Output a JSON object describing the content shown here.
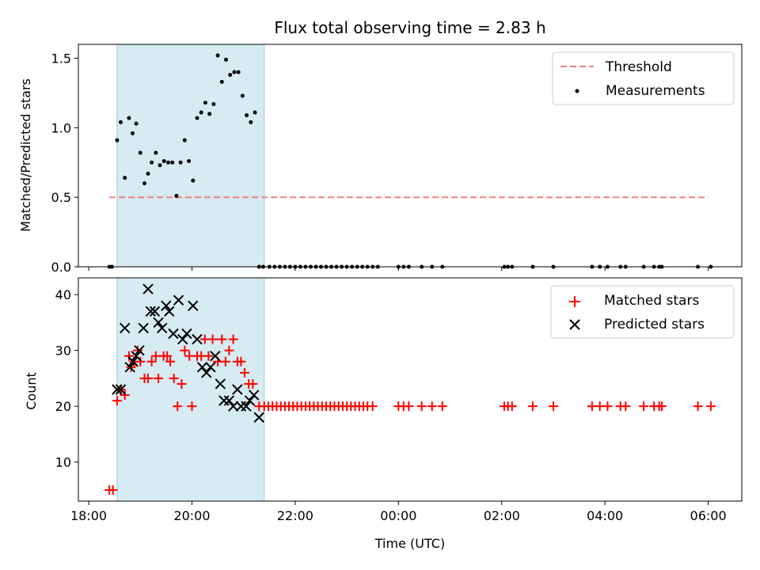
{
  "chart_data": [
    {
      "type": "scatter",
      "title": "Flux total observing time = 2.83 h",
      "ylabel": "Matched/Predicted stars",
      "xlabel": "",
      "x_unit": "hours since 18:00 UTC",
      "xlim": [
        -0.2,
        12.65
      ],
      "ylim": [
        0,
        1.6
      ],
      "yticks": [
        0.0,
        0.5,
        1.0,
        1.5
      ],
      "ytick_labels": [
        "0.0",
        "0.5",
        "1.0",
        "1.5"
      ],
      "xticks": [
        0,
        2,
        4,
        6,
        8,
        10,
        12
      ],
      "grid": false,
      "legend_position": "top-right",
      "shaded_x": [
        0.55,
        3.4
      ],
      "threshold": {
        "name": "Threshold",
        "y": 0.5,
        "x": [
          0.4,
          12
        ]
      },
      "series": [
        {
          "name": "Measurements",
          "x": [
            0.4,
            0.45,
            0.55,
            0.62,
            0.7,
            0.78,
            0.85,
            0.92,
            1.0,
            1.08,
            1.15,
            1.22,
            1.3,
            1.38,
            1.46,
            1.54,
            1.62,
            1.7,
            1.78,
            1.86,
            1.94,
            2.02,
            2.1,
            2.18,
            2.26,
            2.34,
            2.42,
            2.5,
            2.58,
            2.66,
            2.74,
            2.82,
            2.9,
            2.98,
            3.06,
            3.14,
            3.22,
            3.3,
            3.38,
            3.5,
            3.6,
            3.7,
            3.8,
            3.9,
            4.0,
            4.1,
            4.2,
            4.3,
            4.4,
            4.5,
            4.6,
            4.7,
            4.8,
            4.9,
            5.0,
            5.1,
            5.2,
            5.3,
            5.4,
            5.5,
            5.6,
            6.0,
            6.1,
            6.2,
            6.45,
            6.65,
            6.85,
            8.05,
            8.12,
            8.2,
            8.6,
            9.0,
            9.75,
            9.9,
            10.05,
            10.3,
            10.4,
            10.75,
            10.95,
            11.05,
            11.1,
            11.8,
            12.05
          ],
          "y": [
            0,
            0,
            0.91,
            1.04,
            0.64,
            1.07,
            0.96,
            1.03,
            0.82,
            0.6,
            0.67,
            0.75,
            0.82,
            0.73,
            0.76,
            0.75,
            0.75,
            0.51,
            0.75,
            0.91,
            0.76,
            0.62,
            1.07,
            1.11,
            1.18,
            1.1,
            1.17,
            1.52,
            1.33,
            1.49,
            1.38,
            1.4,
            1.4,
            1.23,
            1.09,
            1.04,
            1.11,
            0,
            0,
            0,
            0,
            0,
            0,
            0,
            0,
            0,
            0,
            0,
            0,
            0,
            0,
            0,
            0,
            0,
            0,
            0,
            0,
            0,
            0,
            0,
            0,
            0,
            0,
            0,
            0,
            0,
            0,
            0,
            0,
            0,
            0,
            0,
            0,
            0,
            0,
            0,
            0,
            0,
            0,
            0,
            0,
            0,
            0
          ]
        }
      ]
    },
    {
      "type": "scatter",
      "title": "",
      "xlabel": "Time (UTC)",
      "ylabel": "Count",
      "x_unit": "hours since 18:00 UTC",
      "xlim": [
        -0.2,
        12.65
      ],
      "ylim": [
        3,
        43
      ],
      "yticks": [
        10,
        20,
        30,
        40
      ],
      "ytick_labels": [
        "10",
        "20",
        "30",
        "40"
      ],
      "xticks": [
        0,
        2,
        4,
        6,
        8,
        10,
        12
      ],
      "xtick_labels": [
        "18:00",
        "20:00",
        "22:00",
        "00:00",
        "02:00",
        "04:00",
        "06:00"
      ],
      "grid": false,
      "legend_position": "top-right",
      "shaded_x": [
        0.55,
        3.4
      ],
      "series": [
        {
          "name": "Matched stars",
          "marker": "plus",
          "x": [
            0.4,
            0.47,
            0.55,
            0.62,
            0.7,
            0.78,
            0.82,
            0.88,
            0.95,
            1.0,
            1.08,
            1.15,
            1.22,
            1.3,
            1.35,
            1.45,
            1.52,
            1.58,
            1.65,
            1.72,
            1.8,
            1.86,
            1.95,
            2.0,
            2.1,
            2.18,
            2.25,
            2.32,
            2.4,
            2.5,
            2.58,
            2.65,
            2.72,
            2.8,
            2.88,
            2.95,
            3.02,
            3.1,
            3.18,
            3.3,
            3.4,
            3.48,
            3.56,
            3.64,
            3.72,
            3.8,
            3.88,
            3.96,
            4.04,
            4.12,
            4.2,
            4.28,
            4.36,
            4.44,
            4.52,
            4.6,
            4.68,
            4.76,
            4.84,
            4.92,
            5.0,
            5.08,
            5.16,
            5.24,
            5.32,
            5.4,
            5.5,
            6.0,
            6.1,
            6.2,
            6.45,
            6.65,
            6.85,
            8.05,
            8.12,
            8.2,
            8.6,
            9.0,
            9.75,
            9.9,
            10.05,
            10.3,
            10.4,
            10.75,
            10.95,
            11.05,
            11.1,
            11.8,
            12.05
          ],
          "y": [
            5,
            5,
            21,
            23,
            22,
            29,
            27,
            28,
            30,
            28,
            25,
            25,
            28,
            29,
            25,
            29,
            29,
            28,
            25,
            20,
            24,
            30,
            29,
            20,
            29,
            29,
            32,
            29,
            32,
            28,
            32,
            28,
            30,
            32,
            28,
            28,
            26,
            24,
            24,
            20,
            20,
            20,
            20,
            20,
            20,
            20,
            20,
            20,
            20,
            20,
            20,
            20,
            20,
            20,
            20,
            20,
            20,
            20,
            20,
            20,
            20,
            20,
            20,
            20,
            20,
            20,
            20,
            20,
            20,
            20,
            20,
            20,
            20,
            20,
            20,
            20,
            20,
            20,
            20,
            20,
            20,
            20,
            20,
            20,
            20,
            20,
            20,
            20,
            20
          ]
        },
        {
          "name": "Predicted stars",
          "marker": "x",
          "x": [
            0.55,
            0.62,
            0.7,
            0.8,
            0.86,
            0.92,
            0.98,
            1.06,
            1.15,
            1.2,
            1.28,
            1.35,
            1.42,
            1.5,
            1.56,
            1.64,
            1.74,
            1.82,
            1.9,
            2.02,
            2.1,
            2.2,
            2.28,
            2.36,
            2.45,
            2.55,
            2.62,
            2.72,
            2.8,
            2.88,
            2.95,
            3.05,
            3.12,
            3.2,
            3.3
          ],
          "y": [
            23,
            23,
            34,
            27,
            28,
            29,
            30,
            34,
            41,
            37,
            37,
            35,
            34,
            38,
            37,
            33,
            39,
            32,
            33,
            38,
            32,
            27,
            26,
            27,
            29,
            24,
            21,
            21,
            20,
            23,
            20,
            20,
            21,
            22,
            18
          ]
        }
      ]
    }
  ]
}
